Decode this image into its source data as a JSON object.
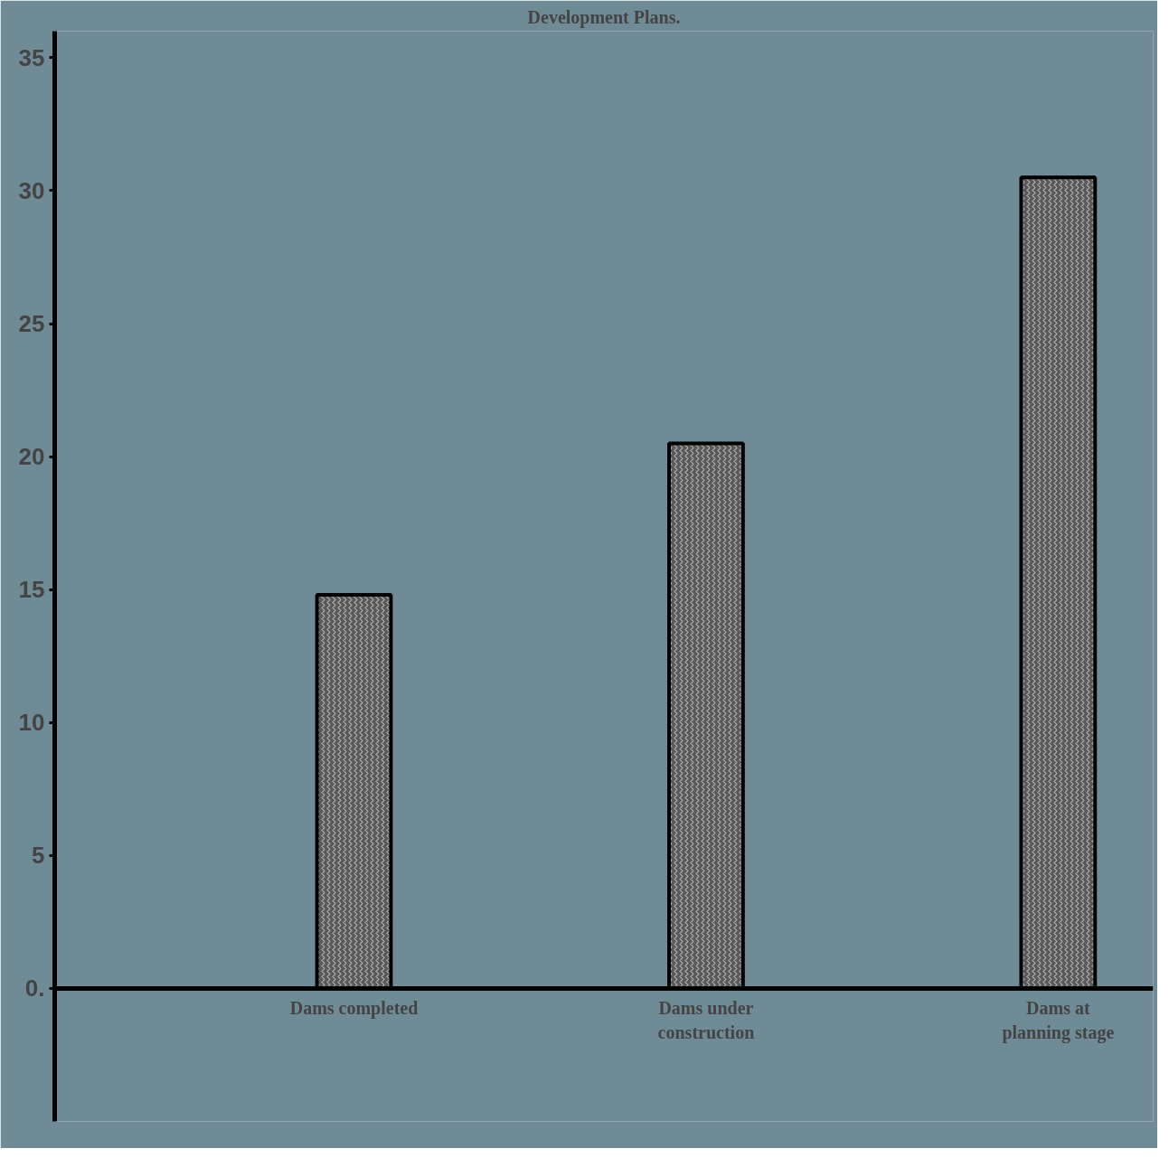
{
  "chart_data": {
    "type": "bar",
    "title": "Development Plans.",
    "categories": [
      "Dams completed",
      "Dams under construction",
      "Dams at planning stage"
    ],
    "values": [
      14.8,
      20.5,
      30.5
    ],
    "color": "#5a5a5a",
    "ylim": [
      -5,
      36
    ],
    "yticks": [
      {
        "value": 0,
        "label": "0."
      },
      5,
      10,
      15,
      20,
      25,
      30,
      35
    ],
    "grid": false
  }
}
